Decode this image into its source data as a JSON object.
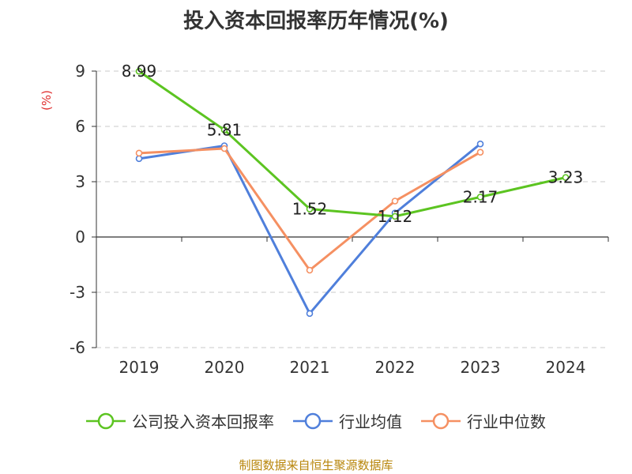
{
  "chart_data": {
    "type": "line",
    "title": "投入资本回报率历年情况(%)",
    "ylabel": "(%)",
    "xlabel": "",
    "categories": [
      "2019",
      "2020",
      "2021",
      "2022",
      "2023",
      "2024"
    ],
    "ylim": [
      -6,
      9
    ],
    "yticks": [
      9,
      6,
      3,
      0,
      -3,
      -6
    ],
    "grid": true,
    "legend_position": "bottom",
    "series": [
      {
        "name": "公司投入资本回报率",
        "color": "#5cc421",
        "values": [
          8.99,
          5.81,
          1.52,
          1.12,
          2.17,
          3.23
        ],
        "labels": [
          "8.99",
          "5.81",
          "1.52",
          "1.12",
          "2.17",
          "3.23"
        ]
      },
      {
        "name": "行业均值",
        "color": "#4f7fdb",
        "values": [
          4.25,
          4.95,
          -4.15,
          1.3,
          5.05,
          null
        ]
      },
      {
        "name": "行业中位数",
        "color": "#f59062",
        "values": [
          4.55,
          4.8,
          -1.8,
          1.95,
          4.6,
          null
        ]
      }
    ]
  },
  "source_text": "制图数据来自恒生聚源数据库"
}
